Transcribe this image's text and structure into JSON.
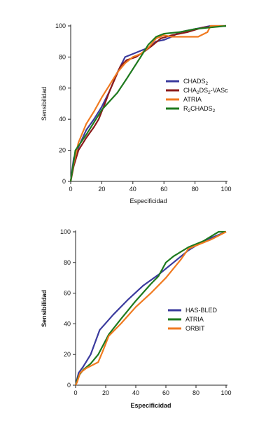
{
  "chart_data": [
    {
      "type": "line",
      "xlabel": "Especificidad",
      "ylabel": "Sensibilidad",
      "xlim": [
        0,
        100
      ],
      "ylim": [
        0,
        100
      ],
      "xticks": [
        0,
        20,
        40,
        60,
        80,
        100
      ],
      "yticks": [
        0,
        20,
        40,
        60,
        80,
        100
      ],
      "legend_position": "right",
      "series": [
        {
          "name": "CHADS2",
          "legend_parts": [
            [
              "CHADS",
              false
            ],
            [
              "2",
              true
            ]
          ],
          "color": "#3b3b9e",
          "points": [
            [
              0,
              0
            ],
            [
              2,
              15
            ],
            [
              5,
              22
            ],
            [
              10,
              33
            ],
            [
              15,
              40
            ],
            [
              20,
              48
            ],
            [
              25,
              58
            ],
            [
              30,
              70
            ],
            [
              35,
              80
            ],
            [
              40,
              82
            ],
            [
              45,
              84
            ],
            [
              50,
              86
            ],
            [
              55,
              90
            ],
            [
              60,
              91
            ],
            [
              65,
              93
            ],
            [
              70,
              96
            ],
            [
              80,
              98
            ],
            [
              90,
              100
            ],
            [
              100,
              100
            ]
          ]
        },
        {
          "name": "CHA2DS2-VASc",
          "legend_parts": [
            [
              "CHA",
              false
            ],
            [
              "2",
              true
            ],
            [
              "DS",
              false
            ],
            [
              "2",
              true
            ],
            [
              "-VASc",
              false
            ]
          ],
          "color": "#8b1a1a",
          "points": [
            [
              0,
              0
            ],
            [
              2,
              10
            ],
            [
              5,
              20
            ],
            [
              10,
              28
            ],
            [
              15,
              35
            ],
            [
              18,
              40
            ],
            [
              22,
              50
            ],
            [
              25,
              58
            ],
            [
              28,
              65
            ],
            [
              32,
              74
            ],
            [
              36,
              78
            ],
            [
              42,
              80
            ],
            [
              48,
              84
            ],
            [
              52,
              87
            ],
            [
              58,
              92
            ],
            [
              65,
              94
            ],
            [
              75,
              96
            ],
            [
              85,
              99
            ],
            [
              100,
              100
            ]
          ]
        },
        {
          "name": "ATRIA",
          "legend_parts": [
            [
              "ATRIA",
              false
            ]
          ],
          "color": "#f07a20",
          "points": [
            [
              0,
              0
            ],
            [
              2,
              12
            ],
            [
              5,
              25
            ],
            [
              10,
              37
            ],
            [
              15,
              45
            ],
            [
              20,
              54
            ],
            [
              25,
              62
            ],
            [
              30,
              70
            ],
            [
              35,
              76
            ],
            [
              40,
              80
            ],
            [
              45,
              82
            ],
            [
              50,
              86
            ],
            [
              55,
              92
            ],
            [
              60,
              94
            ],
            [
              65,
              93
            ],
            [
              75,
              93
            ],
            [
              82,
              93
            ],
            [
              88,
              96
            ],
            [
              90,
              100
            ],
            [
              100,
              100
            ]
          ]
        },
        {
          "name": "R2CHADS2",
          "legend_parts": [
            [
              "R",
              false
            ],
            [
              "2",
              true
            ],
            [
              "CHADS",
              false
            ],
            [
              "2",
              true
            ]
          ],
          "color": "#1e7a1e",
          "points": [
            [
              0,
              0
            ],
            [
              3,
              20
            ],
            [
              10,
              30
            ],
            [
              20,
              46
            ],
            [
              30,
              57
            ],
            [
              36,
              66
            ],
            [
              45,
              80
            ],
            [
              50,
              88
            ],
            [
              55,
              93
            ],
            [
              60,
              95
            ],
            [
              70,
              96
            ],
            [
              80,
              98
            ],
            [
              90,
              99
            ],
            [
              100,
              100
            ]
          ]
        }
      ]
    },
    {
      "type": "line",
      "xlabel": "Especificidad",
      "ylabel": "Sensibilidad",
      "xlim": [
        0,
        100
      ],
      "ylim": [
        0,
        100
      ],
      "xticks": [
        0,
        20,
        40,
        60,
        80,
        100
      ],
      "yticks": [
        0,
        20,
        40,
        60,
        80,
        100
      ],
      "legend_position": "right",
      "series": [
        {
          "name": "HAS-BLED",
          "legend_parts": [
            [
              "HAS-BLED",
              false
            ]
          ],
          "color": "#3b3b9e",
          "points": [
            [
              0,
              0
            ],
            [
              2,
              8
            ],
            [
              5,
              12
            ],
            [
              10,
              20
            ],
            [
              16,
              36
            ],
            [
              25,
              46
            ],
            [
              35,
              56
            ],
            [
              45,
              65
            ],
            [
              55,
              72
            ],
            [
              65,
              80
            ],
            [
              75,
              88
            ],
            [
              85,
              94
            ],
            [
              100,
              100
            ]
          ]
        },
        {
          "name": "ATRIA",
          "legend_parts": [
            [
              "ATRIA",
              false
            ]
          ],
          "color": "#1e7a1e",
          "points": [
            [
              0,
              0
            ],
            [
              2,
              6
            ],
            [
              5,
              10
            ],
            [
              10,
              14
            ],
            [
              15,
              20
            ],
            [
              22,
              33
            ],
            [
              30,
              43
            ],
            [
              40,
              55
            ],
            [
              50,
              66
            ],
            [
              55,
              71
            ],
            [
              60,
              80
            ],
            [
              65,
              84
            ],
            [
              75,
              90
            ],
            [
              85,
              94
            ],
            [
              95,
              100
            ],
            [
              100,
              100
            ]
          ]
        },
        {
          "name": "ORBIT",
          "legend_parts": [
            [
              "ORBIT",
              false
            ]
          ],
          "color": "#f07a20",
          "points": [
            [
              0,
              0
            ],
            [
              1,
              2
            ],
            [
              3,
              8
            ],
            [
              7,
              11
            ],
            [
              11,
              13
            ],
            [
              15,
              15
            ],
            [
              18,
              22
            ],
            [
              22,
              32
            ],
            [
              30,
              40
            ],
            [
              40,
              51
            ],
            [
              50,
              60
            ],
            [
              60,
              70
            ],
            [
              70,
              82
            ],
            [
              75,
              89
            ],
            [
              80,
              91
            ],
            [
              90,
              95
            ],
            [
              100,
              100
            ]
          ]
        }
      ]
    }
  ]
}
